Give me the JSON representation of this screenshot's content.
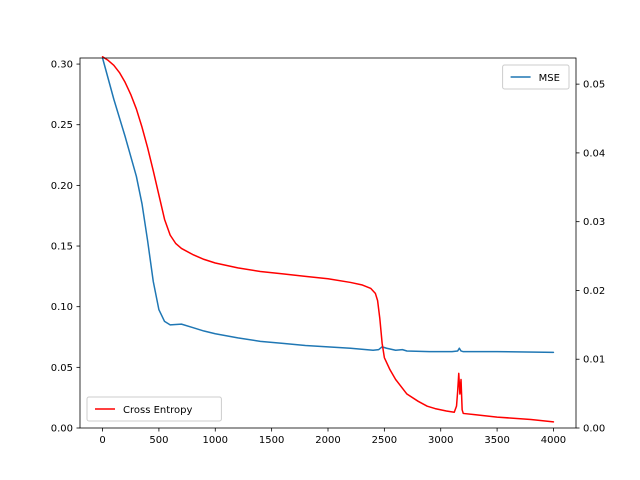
{
  "chart_data": {
    "type": "line",
    "title": "",
    "xlabel": "",
    "ylabel": "",
    "y2label": "",
    "xlim": [
      -200,
      4200
    ],
    "ylim": [
      0,
      0.305
    ],
    "y2lim": [
      0,
      0.0538
    ],
    "xticks": [
      0,
      500,
      1000,
      1500,
      2000,
      2500,
      3000,
      3500,
      4000
    ],
    "xtick_labels": [
      "0",
      "500",
      "1000",
      "1500",
      "2000",
      "2500",
      "3000",
      "3500",
      "4000"
    ],
    "yticks": [
      0.0,
      0.05,
      0.1,
      0.15,
      0.2,
      0.25,
      0.3
    ],
    "ytick_labels": [
      "0.00",
      "0.05",
      "0.10",
      "0.15",
      "0.20",
      "0.25",
      "0.30"
    ],
    "y2ticks": [
      0.0,
      0.01,
      0.02,
      0.03,
      0.04,
      0.05
    ],
    "y2tick_labels": [
      "0.00",
      "0.01",
      "0.02",
      "0.03",
      "0.04",
      "0.05"
    ],
    "grid": false,
    "series": [
      {
        "name": "MSE",
        "axis": "right",
        "color": "#1f77b4",
        "legend": "upper right",
        "points": [
          [
            0,
            0.0538
          ],
          [
            100,
            0.0478
          ],
          [
            200,
            0.0424
          ],
          [
            300,
            0.0366
          ],
          [
            350,
            0.0326
          ],
          [
            400,
            0.0272
          ],
          [
            450,
            0.0213
          ],
          [
            500,
            0.0172
          ],
          [
            550,
            0.0155
          ],
          [
            600,
            0.015
          ],
          [
            700,
            0.0151
          ],
          [
            800,
            0.0146
          ],
          [
            900,
            0.0141
          ],
          [
            1000,
            0.0137
          ],
          [
            1200,
            0.0131
          ],
          [
            1400,
            0.0126
          ],
          [
            1600,
            0.0123
          ],
          [
            1800,
            0.012
          ],
          [
            2000,
            0.0118
          ],
          [
            2200,
            0.0116
          ],
          [
            2400,
            0.0113
          ],
          [
            2450,
            0.0114
          ],
          [
            2480,
            0.0118
          ],
          [
            2520,
            0.0116
          ],
          [
            2600,
            0.0113
          ],
          [
            2660,
            0.0114
          ],
          [
            2700,
            0.0112
          ],
          [
            2900,
            0.0111
          ],
          [
            3100,
            0.0111
          ],
          [
            3150,
            0.0112
          ],
          [
            3165,
            0.0116
          ],
          [
            3180,
            0.0112
          ],
          [
            3200,
            0.0111
          ],
          [
            3500,
            0.0111
          ],
          [
            4000,
            0.011
          ]
        ]
      },
      {
        "name": "Cross Entropy",
        "axis": "left",
        "color": "#ff0000",
        "legend": "lower left",
        "points": [
          [
            0,
            0.306
          ],
          [
            50,
            0.303
          ],
          [
            100,
            0.299
          ],
          [
            150,
            0.293
          ],
          [
            200,
            0.285
          ],
          [
            250,
            0.275
          ],
          [
            300,
            0.263
          ],
          [
            350,
            0.248
          ],
          [
            400,
            0.231
          ],
          [
            450,
            0.212
          ],
          [
            500,
            0.192
          ],
          [
            550,
            0.172
          ],
          [
            600,
            0.159
          ],
          [
            650,
            0.152
          ],
          [
            700,
            0.148
          ],
          [
            800,
            0.143
          ],
          [
            900,
            0.139
          ],
          [
            1000,
            0.136
          ],
          [
            1200,
            0.132
          ],
          [
            1400,
            0.129
          ],
          [
            1600,
            0.127
          ],
          [
            1800,
            0.125
          ],
          [
            2000,
            0.123
          ],
          [
            2200,
            0.12
          ],
          [
            2300,
            0.118
          ],
          [
            2380,
            0.115
          ],
          [
            2420,
            0.111
          ],
          [
            2440,
            0.105
          ],
          [
            2460,
            0.09
          ],
          [
            2480,
            0.07
          ],
          [
            2500,
            0.058
          ],
          [
            2550,
            0.048
          ],
          [
            2600,
            0.04
          ],
          [
            2700,
            0.028
          ],
          [
            2800,
            0.022
          ],
          [
            2880,
            0.018
          ],
          [
            2950,
            0.016
          ],
          [
            3050,
            0.014
          ],
          [
            3120,
            0.013
          ],
          [
            3140,
            0.018
          ],
          [
            3150,
            0.03
          ],
          [
            3160,
            0.045
          ],
          [
            3170,
            0.028
          ],
          [
            3180,
            0.04
          ],
          [
            3190,
            0.015
          ],
          [
            3200,
            0.012
          ],
          [
            3300,
            0.011
          ],
          [
            3500,
            0.009
          ],
          [
            3800,
            0.007
          ],
          [
            4000,
            0.005
          ]
        ]
      }
    ]
  }
}
